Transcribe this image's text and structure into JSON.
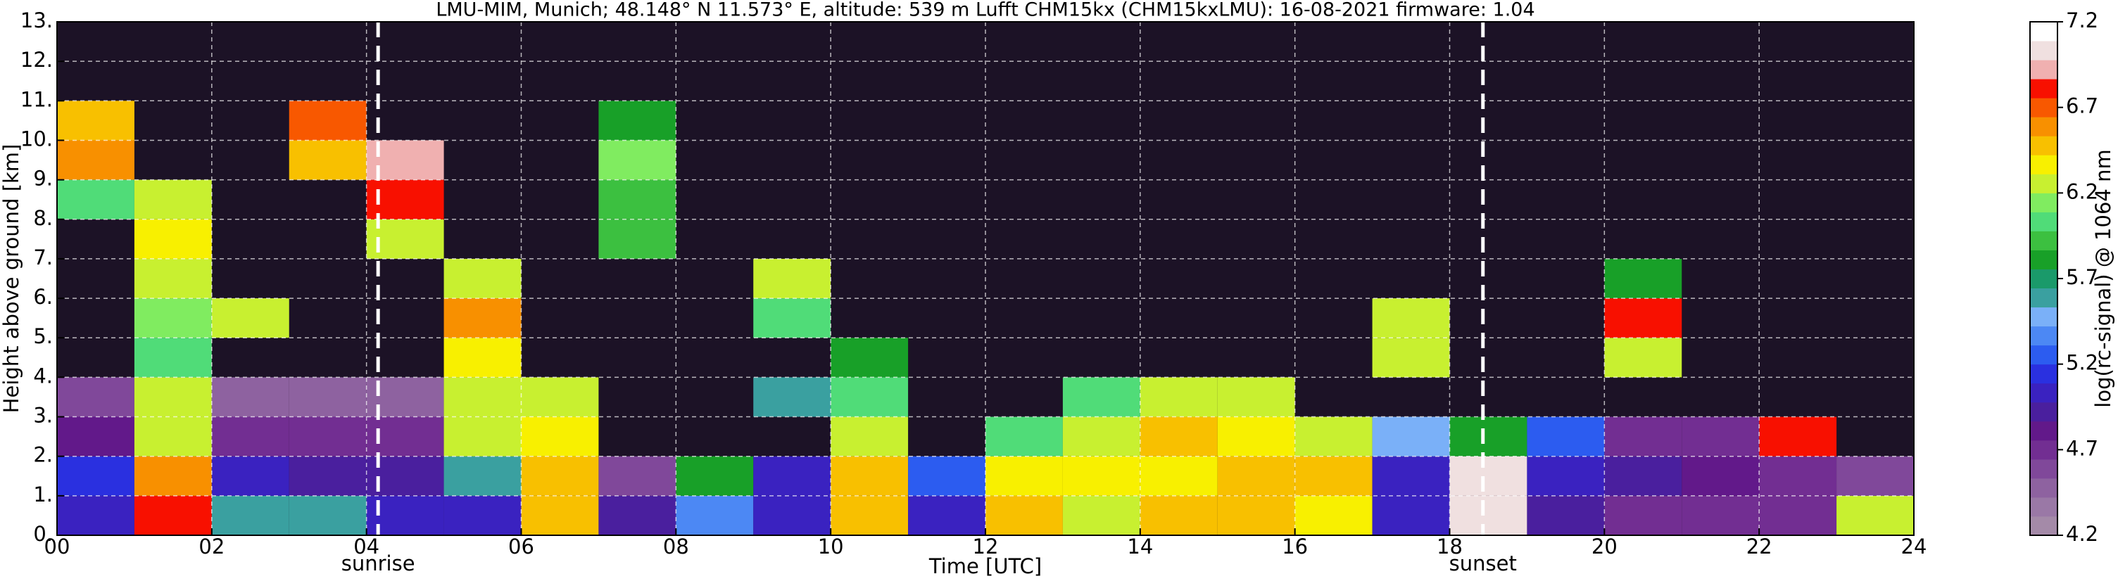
{
  "chart_data": {
    "type": "heatmap",
    "title": "LMU-MIM, Munich; 48.148° N 11.573° E, altitude: 539 m    Lufft CHM15kx (CHM15kxLMU): 16-08-2021    firmware: 1.04",
    "x_label": "Time [UTC]",
    "y_label": "Height above ground [km]",
    "colorbar_label": "log(rc-signal) @ 1064 nm",
    "xbins": [
      0,
      1,
      2,
      3,
      4,
      5,
      6,
      7,
      8,
      9,
      10,
      11,
      12,
      13,
      14,
      15,
      16,
      17,
      18,
      19,
      20,
      21,
      22,
      23,
      24
    ],
    "ybins": [
      0,
      1,
      2,
      3,
      4,
      5,
      6,
      7,
      8,
      9,
      10,
      11,
      12,
      13
    ],
    "z": [
      [
        5.0,
        6.8,
        5.6,
        5.6,
        5.0,
        5.0,
        6.5,
        4.9,
        5.4,
        5.0,
        6.5,
        5.0,
        6.5,
        6.3,
        6.5,
        6.5,
        6.4,
        5.0,
        7.0,
        4.9,
        4.7,
        4.7,
        4.7,
        6.2
      ],
      [
        5.1,
        6.6,
        5.0,
        4.9,
        4.9,
        5.6,
        6.5,
        4.6,
        5.8,
        5.0,
        6.5,
        5.3,
        6.4,
        6.4,
        6.4,
        6.5,
        6.5,
        5.0,
        7.0,
        5.0,
        4.9,
        4.8,
        4.7,
        4.6
      ],
      [
        4.8,
        6.3,
        4.7,
        4.7,
        4.7,
        6.2,
        6.4,
        null,
        null,
        null,
        6.2,
        null,
        6.0,
        6.3,
        6.5,
        6.4,
        6.3,
        5.5,
        5.8,
        5.2,
        4.7,
        4.7,
        6.8,
        null
      ],
      [
        4.6,
        6.2,
        4.5,
        4.5,
        4.5,
        6.3,
        6.3,
        null,
        null,
        5.6,
        6.0,
        null,
        null,
        6.0,
        6.2,
        6.3,
        null,
        null,
        null,
        null,
        null,
        null,
        null,
        null
      ],
      [
        null,
        6.0,
        null,
        null,
        null,
        6.4,
        null,
        null,
        null,
        null,
        5.8,
        null,
        null,
        null,
        null,
        null,
        null,
        6.3,
        null,
        null,
        6.2,
        null,
        null,
        null
      ],
      [
        null,
        6.1,
        6.3,
        null,
        null,
        6.6,
        null,
        null,
        null,
        6.0,
        null,
        null,
        null,
        null,
        null,
        null,
        null,
        6.2,
        null,
        null,
        6.8,
        null,
        null,
        null
      ],
      [
        null,
        6.2,
        null,
        null,
        null,
        6.2,
        null,
        null,
        null,
        6.3,
        null,
        null,
        null,
        null,
        null,
        null,
        null,
        null,
        null,
        null,
        5.8,
        null,
        null,
        null
      ],
      [
        null,
        6.4,
        null,
        null,
        6.3,
        null,
        null,
        5.9,
        null,
        null,
        null,
        null,
        null,
        null,
        null,
        null,
        null,
        null,
        null,
        null,
        null,
        null,
        null,
        null
      ],
      [
        6.0,
        6.2,
        null,
        null,
        6.8,
        null,
        null,
        5.9,
        null,
        null,
        null,
        null,
        null,
        null,
        null,
        null,
        null,
        null,
        null,
        null,
        null,
        null,
        null,
        null
      ],
      [
        6.6,
        null,
        null,
        6.5,
        6.9,
        null,
        null,
        6.1,
        null,
        null,
        null,
        null,
        null,
        null,
        null,
        null,
        null,
        null,
        null,
        null,
        null,
        null,
        null,
        null
      ],
      [
        6.5,
        null,
        null,
        6.7,
        null,
        null,
        null,
        5.8,
        null,
        null,
        null,
        null,
        null,
        null,
        null,
        null,
        null,
        null,
        null,
        null,
        null,
        null,
        null,
        null
      ],
      [
        null,
        null,
        null,
        null,
        null,
        null,
        null,
        null,
        null,
        null,
        null,
        null,
        null,
        null,
        null,
        null,
        null,
        null,
        null,
        null,
        null,
        null,
        null,
        null
      ],
      [
        null,
        null,
        null,
        null,
        null,
        null,
        null,
        null,
        null,
        null,
        null,
        null,
        null,
        null,
        null,
        null,
        null,
        null,
        null,
        null,
        null,
        null,
        null,
        null
      ]
    ],
    "xlim": [
      0,
      24
    ],
    "ylim": [
      0,
      13
    ],
    "xticks": [
      {
        "value": 0,
        "label": "00"
      },
      {
        "value": 2,
        "label": "02"
      },
      {
        "value": 4,
        "label": "04"
      },
      {
        "value": 6,
        "label": "06"
      },
      {
        "value": 8,
        "label": "08"
      },
      {
        "value": 10,
        "label": "10"
      },
      {
        "value": 12,
        "label": "12"
      },
      {
        "value": 14,
        "label": "14"
      },
      {
        "value": 16,
        "label": "16"
      },
      {
        "value": 18,
        "label": "18"
      },
      {
        "value": 20,
        "label": "20"
      },
      {
        "value": 22,
        "label": "22"
      },
      {
        "value": 24,
        "label": "24"
      }
    ],
    "yticks": [
      {
        "value": 0,
        "label": "0."
      },
      {
        "value": 1,
        "label": "1."
      },
      {
        "value": 2,
        "label": "2."
      },
      {
        "value": 3,
        "label": "3."
      },
      {
        "value": 4,
        "label": "4."
      },
      {
        "value": 5,
        "label": "5."
      },
      {
        "value": 6,
        "label": "6."
      },
      {
        "value": 7,
        "label": "7."
      },
      {
        "value": 8,
        "label": "8."
      },
      {
        "value": 9,
        "label": "9."
      },
      {
        "value": 10,
        "label": "10."
      },
      {
        "value": 11,
        "label": "11."
      },
      {
        "value": 12,
        "label": "12."
      },
      {
        "value": 13,
        "label": "13."
      }
    ],
    "clim": [
      4.2,
      7.2
    ],
    "cticks": [
      4.2,
      4.7,
      5.2,
      5.7,
      6.2,
      6.7,
      7.2
    ],
    "colors": [
      "#a48aa8",
      "#9a78a6",
      "#8e62a0",
      "#80489a",
      "#722e92",
      "#62198a",
      "#4a1f9e",
      "#3a22c0",
      "#2a30e0",
      "#2c5cf0",
      "#4c88f4",
      "#7ab0f8",
      "#3aa0a0",
      "#1a9a6a",
      "#18a028",
      "#3cc040",
      "#50dc78",
      "#80ec60",
      "#c8f030",
      "#f8f000",
      "#f8c000",
      "#f89000",
      "#f85800",
      "#f81000",
      "#f0b0b0",
      "#f0e0e0",
      "#ffffff"
    ],
    "grid": true,
    "annotations": [
      {
        "text": "sunrise",
        "x": 4.15
      },
      {
        "text": "sunset",
        "x": 18.43
      }
    ]
  }
}
